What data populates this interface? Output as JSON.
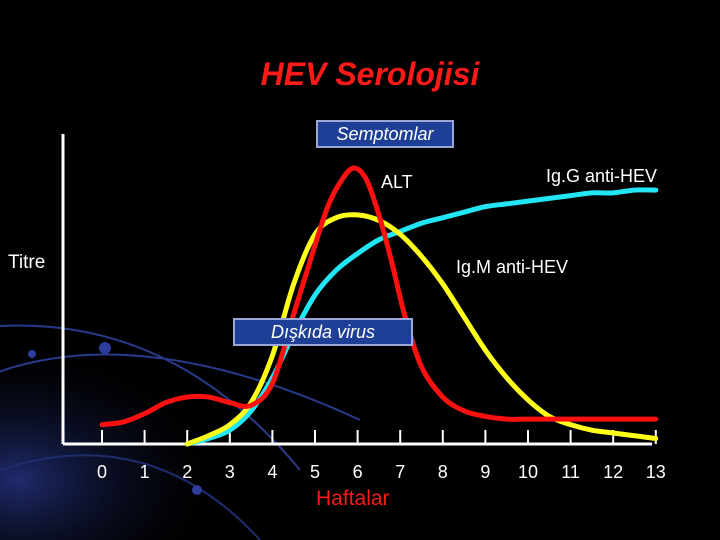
{
  "title": "HEV Serolojisi",
  "annotations": {
    "symptoms": "Semptomlar",
    "virus_in_stool": "Dışkıda virus"
  },
  "colors": {
    "background": "#000000",
    "title": "#ff1a1a",
    "axis": "#ffffff",
    "box": "#1f3f96"
  },
  "chart_data": {
    "type": "line",
    "title": "HEV Serolojisi",
    "xlabel": "Haftalar",
    "ylabel": "Titre",
    "x_ticks": [
      "0",
      "1",
      "2",
      "3",
      "4",
      "5",
      "6",
      "7",
      "8",
      "9",
      "10",
      "11",
      "12",
      "13"
    ],
    "xlim": [
      -0.9,
      13
    ],
    "ylim": [
      0,
      1
    ],
    "grid": false,
    "series": [
      {
        "name": "ALT",
        "color": "#ff1010",
        "x": [
          0.0,
          0.5,
          1.0,
          1.5,
          2.0,
          2.5,
          3.0,
          3.5,
          4.0,
          4.5,
          5.0,
          5.3,
          5.6,
          5.9,
          6.2,
          6.5,
          6.8,
          7.1,
          7.5,
          8.0,
          8.5,
          9.0,
          9.5,
          10.0,
          11.0,
          12.0,
          13.0
        ],
        "y": [
          0.07,
          0.08,
          0.11,
          0.15,
          0.17,
          0.17,
          0.15,
          0.14,
          0.22,
          0.47,
          0.72,
          0.86,
          0.95,
          1.0,
          0.96,
          0.83,
          0.66,
          0.47,
          0.28,
          0.17,
          0.12,
          0.1,
          0.09,
          0.09,
          0.09,
          0.09,
          0.09
        ]
      },
      {
        "name": "Ig.M anti-HEV",
        "color": "#ffff1a",
        "x": [
          2.0,
          2.5,
          3.0,
          3.5,
          4.0,
          4.5,
          5.0,
          5.5,
          6.0,
          6.5,
          7.0,
          7.5,
          8.0,
          8.5,
          9.0,
          9.5,
          10.0,
          10.5,
          11.0,
          11.5,
          12.0,
          12.5,
          13.0
        ],
        "y": [
          0.0,
          0.03,
          0.07,
          0.15,
          0.32,
          0.58,
          0.76,
          0.82,
          0.83,
          0.81,
          0.76,
          0.68,
          0.58,
          0.46,
          0.34,
          0.24,
          0.16,
          0.1,
          0.07,
          0.05,
          0.04,
          0.03,
          0.02
        ]
      },
      {
        "name": "Ig.G anti-HEV",
        "color": "#22e5f5",
        "x": [
          2.0,
          2.5,
          3.0,
          3.5,
          4.0,
          4.5,
          5.0,
          5.5,
          6.0,
          6.5,
          7.0,
          7.5,
          8.0,
          8.5,
          9.0,
          9.5,
          10.0,
          10.5,
          11.0,
          11.5,
          12.0,
          12.5,
          13.0
        ],
        "y": [
          0.0,
          0.02,
          0.05,
          0.12,
          0.24,
          0.4,
          0.54,
          0.63,
          0.69,
          0.74,
          0.77,
          0.8,
          0.82,
          0.84,
          0.86,
          0.87,
          0.88,
          0.89,
          0.9,
          0.91,
          0.91,
          0.92,
          0.92
        ]
      }
    ],
    "series_label_text": {
      "alt": "ALT",
      "igg": "Ig.G anti-HEV",
      "igm": "Ig.M anti-HEV"
    }
  }
}
